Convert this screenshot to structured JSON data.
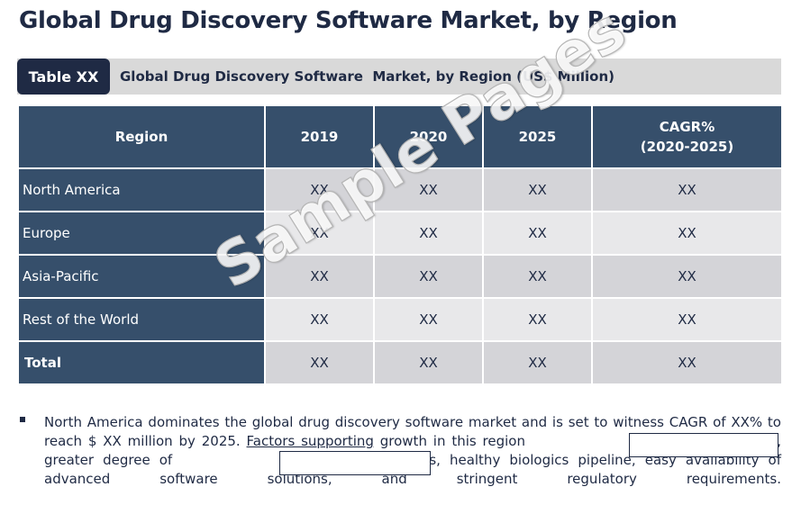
{
  "title": "Global Drug Discovery Software Market, by Region",
  "caption": {
    "tag": "Table XX",
    "text": "Global Drug Discovery Software  Market, by Region (US$ Million)"
  },
  "table": {
    "headers": [
      "Region",
      "2019",
      "2020",
      "2025",
      "CAGR%",
      "(2020-2025)"
    ],
    "rows": [
      {
        "region": "North America",
        "values": [
          "XX",
          "XX",
          "XX",
          "XX"
        ]
      },
      {
        "region": "Europe",
        "values": [
          "XX",
          "XX",
          "XX",
          "XX"
        ]
      },
      {
        "region": "Asia-Pacific",
        "values": [
          "XX",
          "XX",
          "XX",
          "XX"
        ]
      },
      {
        "region": "Rest of the World",
        "values": [
          "XX",
          "XX",
          "XX",
          "XX"
        ]
      },
      {
        "region": "Total",
        "values": [
          "XX",
          "XX",
          "XX",
          "XX"
        ]
      }
    ]
  },
  "watermark": "Sample Pages",
  "bullet": {
    "part1": "North America dominates the global drug discovery software market and is set to witness CAGR of XX% to reach $ XX million by 2025. ",
    "part2": "Factors supporting",
    "part3": " growth in this region",
    "part4": " infrastructure, greater degree of",
    "part5": "tal technologies, healthy biologics pipeline, easy availability of advanced software solutions, and stringent regulatory requirements."
  }
}
